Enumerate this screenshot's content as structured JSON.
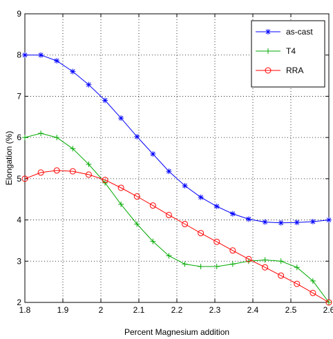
{
  "chart_data": {
    "type": "line",
    "title": "",
    "xlabel": "Percent Magnesium addition",
    "ylabel": "Elongation (%)",
    "xlim": [
      1.8,
      2.6
    ],
    "ylim": [
      2,
      9
    ],
    "xticks": [
      "1.8",
      "1.9",
      "2",
      "2.1",
      "2.2",
      "2.3",
      "2.4",
      "2.5",
      "2.6"
    ],
    "yticks": [
      "2",
      "3",
      "4",
      "5",
      "6",
      "7",
      "8",
      "9"
    ],
    "grid": true,
    "legend_position": "top-right",
    "series": [
      {
        "name": "as-cast",
        "color": "#0000ff",
        "marker": "asterisk",
        "x": [
          1.8,
          1.842,
          1.884,
          1.926,
          1.968,
          2.011,
          2.053,
          2.095,
          2.137,
          2.179,
          2.221,
          2.263,
          2.305,
          2.347,
          2.389,
          2.432,
          2.474,
          2.516,
          2.558,
          2.6
        ],
        "y": [
          8.0,
          8.0,
          7.86,
          7.6,
          7.28,
          6.9,
          6.47,
          6.02,
          5.6,
          5.18,
          4.83,
          4.55,
          4.33,
          4.15,
          4.02,
          3.95,
          3.93,
          3.94,
          3.96,
          4.0
        ]
      },
      {
        "name": "T4",
        "color": "#00aa00",
        "marker": "plus",
        "x": [
          1.8,
          1.842,
          1.884,
          1.926,
          1.968,
          2.011,
          2.053,
          2.095,
          2.137,
          2.179,
          2.221,
          2.263,
          2.305,
          2.347,
          2.389,
          2.432,
          2.474,
          2.516,
          2.558,
          2.6
        ],
        "y": [
          6.0,
          6.1,
          6.0,
          5.73,
          5.35,
          4.9,
          4.38,
          3.9,
          3.48,
          3.13,
          2.93,
          2.87,
          2.87,
          2.93,
          3.0,
          3.03,
          3.0,
          2.85,
          2.52,
          2.0
        ]
      },
      {
        "name": "RRA",
        "color": "#ff0000",
        "marker": "circle",
        "x": [
          1.8,
          1.842,
          1.884,
          1.926,
          1.968,
          2.011,
          2.053,
          2.095,
          2.137,
          2.179,
          2.221,
          2.263,
          2.305,
          2.347,
          2.389,
          2.432,
          2.474,
          2.516,
          2.558,
          2.6
        ],
        "y": [
          5.0,
          5.15,
          5.2,
          5.18,
          5.1,
          4.97,
          4.78,
          4.57,
          4.35,
          4.12,
          3.9,
          3.68,
          3.47,
          3.26,
          3.05,
          2.85,
          2.65,
          2.45,
          2.23,
          2.0
        ]
      }
    ]
  }
}
